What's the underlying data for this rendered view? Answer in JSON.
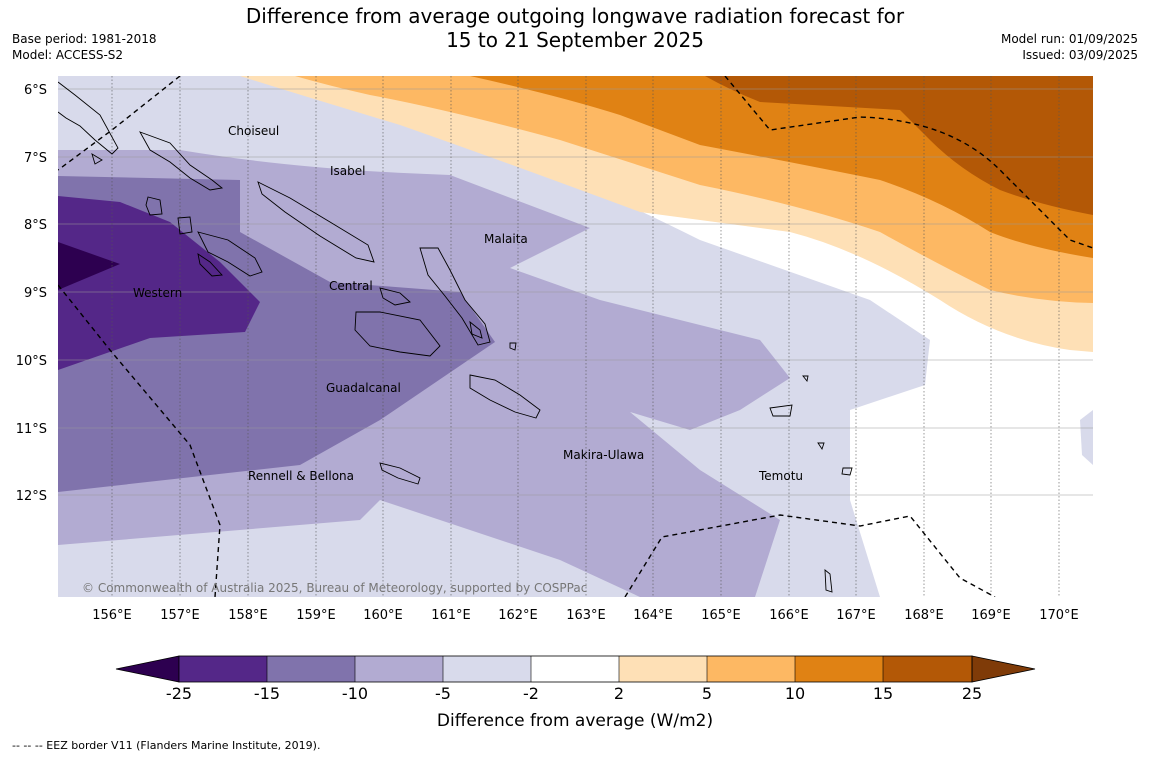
{
  "title_line1": "Difference from average outgoing longwave radiation forecast for",
  "title_line2": "15 to 21 September 2025",
  "base_period": "Base period: 1981-2018",
  "model": "Model: ACCESS-S2",
  "model_run": "Model run: 01/09/2025",
  "issued": "Issued: 03/09/2025",
  "copyright": "© Commonwealth of Australia 2025, Bureau of Meteorology, supported by COSPPac",
  "lat_labels": [
    "6°S",
    "7°S",
    "8°S",
    "9°S",
    "10°S",
    "11°S",
    "12°S"
  ],
  "lon_labels": [
    "156°E",
    "157°E",
    "158°E",
    "159°E",
    "160°E",
    "161°E",
    "162°E",
    "163°E",
    "164°E",
    "165°E",
    "166°E",
    "167°E",
    "168°E",
    "169°E",
    "170°E"
  ],
  "places": {
    "choiseul": "Choiseul",
    "isabel": "Isabel",
    "malaita": "Malaita",
    "western": "Western",
    "central": "Central",
    "guadalcanal": "Guadalcanal",
    "makira": "Makira-Ulawa",
    "temotu": "Temotu",
    "rennell": "Rennell & Bellona"
  },
  "colorbar": {
    "ticks": [
      "-25",
      "-15",
      "-10",
      "-5",
      "-2",
      "2",
      "5",
      "10",
      "15",
      "25"
    ],
    "colors": [
      "#2d0050",
      "#542788",
      "#8073ac",
      "#b2abd2",
      "#d8daeb",
      "#ffffff",
      "#fee0b6",
      "#fdb863",
      "#e08214",
      "#b35806",
      "#7f3b08"
    ],
    "label": "Difference from average (W/m2)"
  },
  "footer": "--  --  -- EEZ border V11 (Flanders Marine Institute, 2019)."
}
